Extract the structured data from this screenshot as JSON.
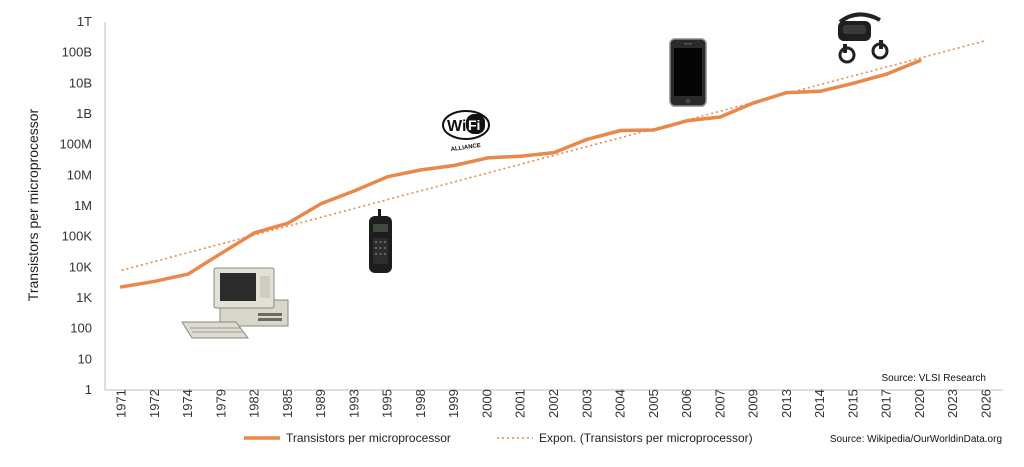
{
  "chart_data": {
    "type": "line",
    "ylabel": "Transistors per microprocessor",
    "xlabel": "",
    "y_scale": "log10",
    "ylim": [
      1,
      1000000000000
    ],
    "y_tick_labels": [
      "1",
      "10",
      "100",
      "1K",
      "10K",
      "100K",
      "1M",
      "10M",
      "100M",
      "1B",
      "10B",
      "100B",
      "1T"
    ],
    "categories": [
      "1971",
      "1972",
      "1974",
      "1979",
      "1982",
      "1985",
      "1989",
      "1993",
      "1995",
      "1998",
      "1999",
      "2000",
      "2001",
      "2002",
      "2003",
      "2004",
      "2005",
      "2006",
      "2007",
      "2009",
      "2013",
      "2014",
      "2015",
      "2017",
      "2020",
      "2023",
      "2026"
    ],
    "series": [
      {
        "name": "Transistors per microprocessor",
        "style": "solid",
        "color": "#E8884A",
        "values": [
          2300,
          3500,
          6000,
          29000,
          134000,
          275000,
          1200000,
          3100000,
          9000000,
          15000000,
          21000000,
          37000000,
          42000000,
          55000000,
          150000000,
          290000000,
          300000000,
          600000000,
          800000000,
          2300000000,
          5000000000,
          5500000000,
          10000000000,
          20000000000,
          55000000000,
          null,
          null
        ]
      },
      {
        "name": "Expon. (Transistors per microprocessor)",
        "style": "dotted",
        "color": "#E8884A",
        "values": [
          8000,
          null,
          null,
          null,
          null,
          null,
          null,
          null,
          null,
          null,
          null,
          null,
          null,
          null,
          null,
          null,
          null,
          null,
          null,
          null,
          null,
          null,
          null,
          null,
          null,
          null,
          250000000000
        ]
      }
    ],
    "grid": false,
    "legend_position": "bottom",
    "annotations": [
      "Source: VLSI Research"
    ]
  },
  "source_note": "Source: Wikipedia/OurWorldinData.org",
  "colors": {
    "axis": "#bfbfbf",
    "line": "#E8884A"
  },
  "images": [
    "desktop-computer",
    "mobile-phone",
    "wifi-logo",
    "smartphone",
    "vr-headset"
  ],
  "wifi_logo_text": {
    "wi": "Wi",
    "fi": "Fi",
    "alliance": "ALLIANCE"
  }
}
